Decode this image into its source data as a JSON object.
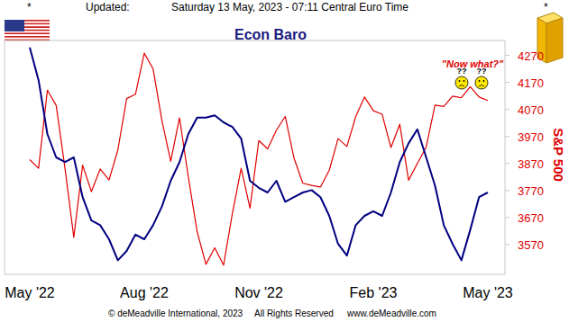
{
  "chart_data": {
    "type": "line",
    "title": "Econ Baro",
    "y_label": "S&P 500",
    "header": [
      "*",
      "Updated:",
      "Saturday 13 May, 2023 - 07:11 Central Euro Time",
      "*"
    ],
    "footer": [
      "© deMeadville International, 2023",
      "All Rights Reserved",
      "www.deMeadville.com"
    ],
    "annotations": [
      "\"Now what?\"",
      "??",
      "??"
    ],
    "categories": [
      "May '22",
      null,
      null,
      null,
      null,
      null,
      null,
      null,
      null,
      null,
      null,
      null,
      null,
      "Aug '22",
      null,
      null,
      null,
      null,
      null,
      null,
      null,
      null,
      null,
      null,
      null,
      null,
      "Nov '22",
      null,
      null,
      null,
      null,
      null,
      null,
      null,
      null,
      null,
      null,
      null,
      null,
      "Feb '23",
      null,
      null,
      null,
      null,
      null,
      null,
      null,
      null,
      null,
      null,
      null,
      null,
      "May '23"
    ],
    "series": [
      {
        "color": "#000080",
        "axis": "y2",
        "values": [
          97,
          83,
          60,
          50,
          48,
          50,
          33,
          23,
          21,
          15,
          6,
          10,
          17,
          15,
          21,
          29,
          40,
          48,
          60,
          67,
          67,
          68,
          65,
          63,
          58,
          40,
          37,
          35,
          40,
          31,
          33,
          35,
          36,
          33,
          25,
          13,
          8,
          21,
          25,
          27,
          25,
          35,
          48,
          56,
          62,
          50,
          38,
          21,
          13,
          6,
          19,
          33,
          35
        ]
      },
      {
        "color": "#e00000",
        "values": [
          3884,
          3852,
          4141,
          4085,
          3852,
          3597,
          3864,
          3766,
          3850,
          3809,
          3920,
          4110,
          4126,
          4278,
          4220,
          4029,
          3878,
          4039,
          3820,
          3618,
          3497,
          3558,
          3494,
          3685,
          3852,
          3705,
          3955,
          3924,
          3993,
          4044,
          3889,
          3797,
          3789,
          3783,
          3845,
          3962,
          3933,
          4043,
          4116,
          4065,
          4052,
          3929,
          4015,
          3808,
          3870,
          3931,
          4086,
          4081,
          4119,
          4113,
          4154,
          4116,
          4103
        ]
      }
    ],
    "ylim": [
      3460,
      4325
    ],
    "yticks": [
      3570,
      3670,
      3770,
      3870,
      3970,
      4070,
      4170,
      4270
    ],
    "y2lim": [
      0,
      100
    ]
  }
}
